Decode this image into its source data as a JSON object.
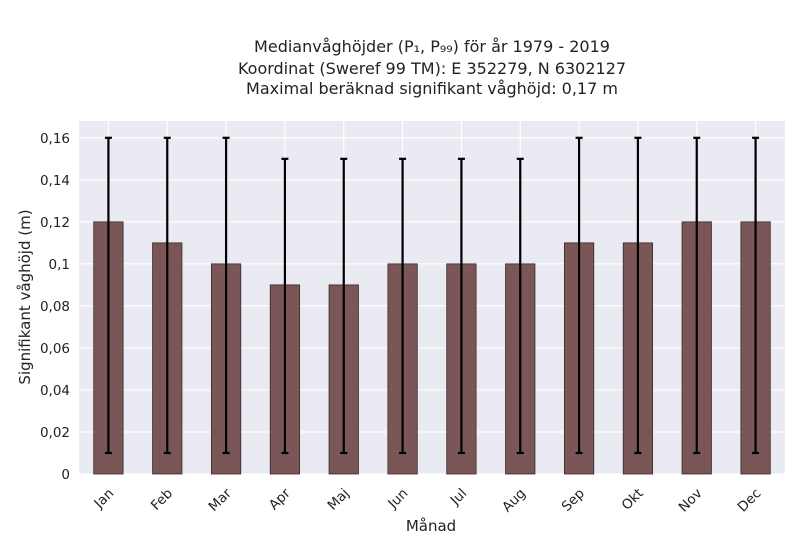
{
  "chart_data": {
    "type": "bar",
    "title_lines": [
      "Medianvåghöjder (P₁, P₉₉) för år 1979 - 2019",
      "Koordinat (Sweref 99 TM): E 352279, N 6302127",
      "Maximal beräknad signifikant våghöjd: 0,17 m"
    ],
    "xlabel": "Månad",
    "ylabel": "Signifikant våghöjd (m)",
    "categories": [
      "Jan",
      "Feb",
      "Mar",
      "Apr",
      "Maj",
      "Jun",
      "Jul",
      "Aug",
      "Sep",
      "Okt",
      "Nov",
      "Dec"
    ],
    "values": [
      0.12,
      0.11,
      0.1,
      0.09,
      0.09,
      0.1,
      0.1,
      0.1,
      0.11,
      0.11,
      0.12,
      0.12
    ],
    "error_low": [
      0.01,
      0.01,
      0.01,
      0.01,
      0.01,
      0.01,
      0.01,
      0.01,
      0.01,
      0.01,
      0.01,
      0.01
    ],
    "error_high": [
      0.16,
      0.16,
      0.16,
      0.15,
      0.15,
      0.15,
      0.15,
      0.15,
      0.16,
      0.16,
      0.16,
      0.16
    ],
    "ylim": [
      0,
      0.168
    ],
    "yticks": [
      0,
      0.02,
      0.04,
      0.06,
      0.08,
      0.1,
      0.12,
      0.14,
      0.16
    ],
    "ytick_labels": [
      "0",
      "0,02",
      "0,04",
      "0,06",
      "0,08",
      "0,1",
      "0,12",
      "0,14",
      "0,16"
    ],
    "grid": true,
    "colors": {
      "bar": "#7a5656",
      "bar_edge": "#3a2a2a",
      "error": "#000000",
      "plot_bg": "#eaeaf2",
      "grid": "#ffffff"
    }
  }
}
